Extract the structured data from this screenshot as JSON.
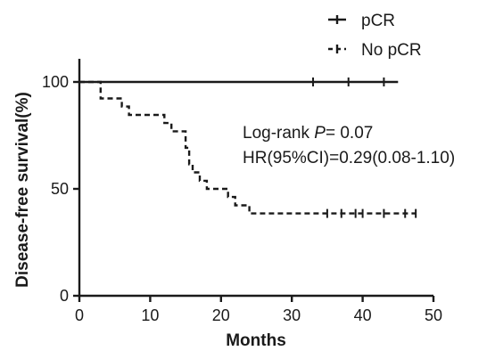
{
  "chart_data": {
    "type": "line",
    "subtype": "kaplan-meier",
    "title": "",
    "xlabel": "Months",
    "ylabel": "Disease-free survival(%)",
    "xlim": [
      0,
      50
    ],
    "ylim": [
      0,
      100
    ],
    "x_ticks": [
      0,
      10,
      20,
      30,
      40,
      50
    ],
    "y_ticks": [
      0,
      50,
      100
    ],
    "grid": false,
    "legend_position": "top-right",
    "series": [
      {
        "name": "pCR",
        "line_style": "solid",
        "color": "#1a1a1a",
        "steps": [
          [
            0,
            100
          ],
          [
            45,
            100
          ]
        ],
        "censors": [
          [
            33,
            100
          ],
          [
            38,
            100
          ],
          [
            43,
            100
          ]
        ]
      },
      {
        "name": "No pCR",
        "line_style": "dashed",
        "color": "#1a1a1a",
        "steps": [
          [
            0,
            100
          ],
          [
            3,
            100
          ],
          [
            3,
            92.3
          ],
          [
            6,
            92.3
          ],
          [
            6,
            88.5
          ],
          [
            7,
            88.5
          ],
          [
            7,
            84.6
          ],
          [
            12,
            84.6
          ],
          [
            12,
            80.8
          ],
          [
            13,
            80.8
          ],
          [
            13,
            76.9
          ],
          [
            15,
            76.9
          ],
          [
            15,
            69.2
          ],
          [
            15.5,
            69.2
          ],
          [
            15.5,
            61.5
          ],
          [
            16,
            61.5
          ],
          [
            16,
            57.7
          ],
          [
            17,
            57.7
          ],
          [
            17,
            53.8
          ],
          [
            18,
            53.8
          ],
          [
            18,
            50
          ],
          [
            21,
            50
          ],
          [
            21,
            46.2
          ],
          [
            22,
            46.2
          ],
          [
            22,
            42.3
          ],
          [
            24,
            42.3
          ],
          [
            24,
            38.5
          ],
          [
            47.5,
            38.5
          ]
        ],
        "censors": [
          [
            35,
            38.5
          ],
          [
            37,
            38.5
          ],
          [
            39,
            38.5
          ],
          [
            40,
            38.5
          ],
          [
            43,
            38.5
          ],
          [
            46,
            38.5
          ],
          [
            47.5,
            38.5
          ]
        ]
      }
    ],
    "annotations": {
      "logrank_prefix": "Log-rank ",
      "logrank_p_symbol": "P",
      "logrank_value": "= 0.07",
      "hr": "HR(95%CI)=0.29(0.08-1.10)"
    }
  }
}
